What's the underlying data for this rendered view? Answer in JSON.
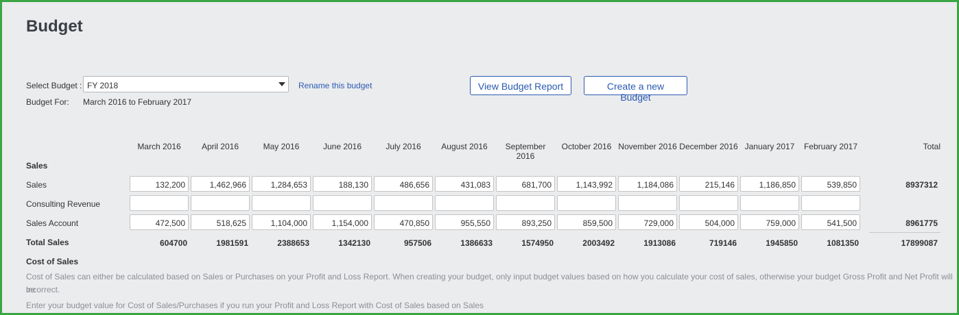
{
  "page": {
    "title": "Budget"
  },
  "selector": {
    "label": "Select Budget :",
    "value": "FY 2018",
    "rename_link": "Rename this budget",
    "budget_for_label": "Budget For:",
    "budget_for_value": "March 2016 to February 2017"
  },
  "buttons": {
    "view_report": "View Budget Report",
    "create_new": "Create a new Budget"
  },
  "table": {
    "months": [
      "March 2016",
      "April 2016",
      "May 2016",
      "June 2016",
      "July 2016",
      "August 2016",
      "September 2016",
      "October 2016",
      "November 2016",
      "December 2016",
      "January 2017",
      "February 2017"
    ],
    "total_header": "Total",
    "section_sales": "Sales",
    "rows": [
      {
        "label": "Sales",
        "values": [
          "132,200",
          "1,462,966",
          "1,284,653",
          "188,130",
          "486,656",
          "431,083",
          "681,700",
          "1,143,992",
          "1,184,086",
          "215,146",
          "1,186,850",
          "539,850"
        ],
        "total": "8937312"
      },
      {
        "label": "Consulting Revenue",
        "values": [
          "",
          "",
          "",
          "",
          "",
          "",
          "",
          "",
          "",
          "",
          "",
          ""
        ],
        "total": ""
      },
      {
        "label": "Sales Account",
        "values": [
          "472,500",
          "518,625",
          "1,104,000",
          "1,154,000",
          "470,850",
          "955,550",
          "893,250",
          "859,500",
          "729,000",
          "504,000",
          "759,000",
          "541,500"
        ],
        "total": "8961775"
      }
    ],
    "total_sales": {
      "label": "Total Sales",
      "values": [
        "604700",
        "1981591",
        "2388653",
        "1342130",
        "957506",
        "1386633",
        "1574950",
        "2003492",
        "1913086",
        "719146",
        "1945850",
        "1081350"
      ],
      "total": "17899087"
    }
  },
  "cost_of_sales": {
    "title": "Cost of Sales",
    "note_line1": "Cost of Sales can either be calculated based on Sales or Purchases on your Profit and Loss Report. When creating your budget, only input budget values based on how you calculate your cost of sales, otherwise your budget Gross Profit and Net Profit will be",
    "note_line2": "incorrect.",
    "note_line3": "Enter your budget value for Cost of Sales/Purchases if you run your Profit and Loss Report with Cost of Sales based on Sales"
  }
}
